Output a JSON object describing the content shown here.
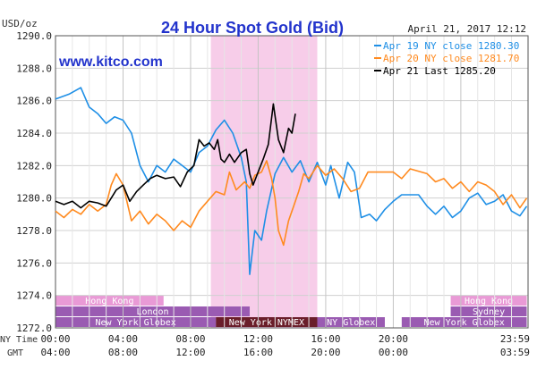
{
  "header": {
    "units": "USD/oz",
    "title": "24 Hour Spot Gold (Bid)",
    "date": "April 21, 2017 12:12",
    "brand": "www.kitco.com"
  },
  "colors": {
    "title": "#2233cc",
    "brand": "#2233cc",
    "ny_session_band": "#f7cde9",
    "apr19": "#1e8fe6",
    "apr20": "#ff8a1f",
    "apr21": "#000000",
    "session_purple": "#9a5bb2",
    "session_pink": "#e99ad6",
    "session_dark": "#6a1e2a"
  },
  "legend": {
    "items": [
      {
        "label": "Apr 19 NY close 1280.30",
        "color": "#1e8fe6"
      },
      {
        "label": "Apr 20 NY close 1281.70",
        "color": "#ff8a1f"
      },
      {
        "label": "Apr 21 Last 1285.20",
        "color": "#000000"
      }
    ]
  },
  "axes": {
    "ny_time_label": "NY Time",
    "gmt_label": "GMT",
    "ny_ticks": [
      "00:00",
      "04:00",
      "08:00",
      "12:00",
      "16:00",
      "20:00",
      "23:59"
    ],
    "gmt_ticks": [
      "04:00",
      "08:00",
      "12:00",
      "16:00",
      "20:00",
      "00:00",
      "03:59"
    ],
    "y_ticks": [
      "1290.0",
      "1288.0",
      "1286.0",
      "1284.0",
      "1282.0",
      "1280.0",
      "1278.0",
      "1276.0",
      "1274.0",
      "1272.0"
    ]
  },
  "sessions": [
    {
      "label": "Hong Kong",
      "row": 0,
      "start_h": 0,
      "end_h": 6.4,
      "color": "#e99ad6"
    },
    {
      "label": "Hong Kong",
      "row": 0,
      "start_h": 23.4,
      "end_h": 27.9,
      "color": "#e99ad6"
    },
    {
      "label": "London",
      "row": 1,
      "start_h": 0,
      "end_h": 11.5,
      "color": "#9a5bb2"
    },
    {
      "label": "Sydney",
      "row": 1,
      "start_h": 23.4,
      "end_h": 27.9,
      "color": "#9a5bb2"
    },
    {
      "label": "New York Globex",
      "row": 2,
      "start_h": 0,
      "end_h": 9.5,
      "color": "#9a5bb2"
    },
    {
      "label": "New York NYMEX",
      "row": 2,
      "start_h": 9.5,
      "end_h": 15.5,
      "color": "#6a1e2a"
    },
    {
      "label": "NY Globex",
      "row": 2,
      "start_h": 15.5,
      "end_h": 19.5,
      "color": "#9a5bb2"
    },
    {
      "label": "New York Globex",
      "row": 2,
      "start_h": 20.5,
      "end_h": 27.9,
      "color": "#9a5bb2"
    }
  ],
  "chart_data": {
    "type": "line",
    "title": "24 Hour Spot Gold (Bid)",
    "ylabel": "USD/oz",
    "xlabel": "NY Time / GMT",
    "ylim": [
      1272,
      1290
    ],
    "xlim": [
      0,
      27.98
    ],
    "x_unit": "hours after 00:00 NY Time",
    "grid": true,
    "legend_position": "top-right",
    "highlight_band": {
      "start": 9.2,
      "end": 15.5
    },
    "series": [
      {
        "name": "Apr 19 NY close 1280.30",
        "color": "#1e8fe6",
        "points": [
          [
            0,
            1286.1
          ],
          [
            0.8,
            1286.4
          ],
          [
            1.5,
            1286.8
          ],
          [
            2.0,
            1285.6
          ],
          [
            2.5,
            1285.2
          ],
          [
            3.0,
            1284.6
          ],
          [
            3.5,
            1285.0
          ],
          [
            4.0,
            1284.8
          ],
          [
            4.5,
            1284.0
          ],
          [
            5.0,
            1282.0
          ],
          [
            5.5,
            1281.0
          ],
          [
            6.0,
            1282.0
          ],
          [
            6.5,
            1281.6
          ],
          [
            7.0,
            1282.4
          ],
          [
            7.5,
            1282.0
          ],
          [
            8.0,
            1281.6
          ],
          [
            8.5,
            1282.8
          ],
          [
            9.0,
            1283.2
          ],
          [
            9.5,
            1284.2
          ],
          [
            10.0,
            1284.8
          ],
          [
            10.5,
            1284.0
          ],
          [
            11.0,
            1282.5
          ],
          [
            11.3,
            1281.0
          ],
          [
            11.5,
            1275.3
          ],
          [
            11.8,
            1278.0
          ],
          [
            12.2,
            1277.4
          ],
          [
            12.5,
            1279.2
          ],
          [
            13.0,
            1281.5
          ],
          [
            13.5,
            1282.5
          ],
          [
            14.0,
            1281.6
          ],
          [
            14.5,
            1282.3
          ],
          [
            15.0,
            1281.0
          ],
          [
            15.5,
            1282.2
          ],
          [
            16.0,
            1280.8
          ],
          [
            16.3,
            1282.0
          ],
          [
            16.8,
            1280.0
          ],
          [
            17.3,
            1282.2
          ],
          [
            17.7,
            1281.6
          ],
          [
            18.1,
            1278.8
          ],
          [
            18.6,
            1279.0
          ],
          [
            19.0,
            1278.6
          ],
          [
            19.5,
            1279.3
          ],
          [
            20.0,
            1279.8
          ],
          [
            20.5,
            1280.2
          ],
          [
            21.5,
            1280.2
          ],
          [
            22.0,
            1279.5
          ],
          [
            22.5,
            1279.0
          ],
          [
            23.0,
            1279.5
          ],
          [
            23.5,
            1278.8
          ],
          [
            24.0,
            1279.2
          ],
          [
            24.5,
            1280.0
          ],
          [
            25.0,
            1280.3
          ],
          [
            25.5,
            1279.6
          ],
          [
            26.0,
            1279.8
          ],
          [
            26.5,
            1280.2
          ],
          [
            27.0,
            1279.2
          ],
          [
            27.5,
            1278.9
          ],
          [
            27.9,
            1279.5
          ]
        ]
      },
      {
        "name": "Apr 20 NY close 1281.70",
        "color": "#ff8a1f",
        "points": [
          [
            0,
            1279.2
          ],
          [
            0.5,
            1278.8
          ],
          [
            1.0,
            1279.3
          ],
          [
            1.5,
            1279.0
          ],
          [
            2.0,
            1279.6
          ],
          [
            2.5,
            1279.2
          ],
          [
            3.0,
            1279.6
          ],
          [
            3.3,
            1280.8
          ],
          [
            3.6,
            1281.5
          ],
          [
            4.0,
            1280.8
          ],
          [
            4.5,
            1278.6
          ],
          [
            5.0,
            1279.2
          ],
          [
            5.5,
            1278.4
          ],
          [
            6.0,
            1279.0
          ],
          [
            6.5,
            1278.6
          ],
          [
            7.0,
            1278.0
          ],
          [
            7.5,
            1278.6
          ],
          [
            8.0,
            1278.2
          ],
          [
            8.5,
            1279.2
          ],
          [
            9.0,
            1279.8
          ],
          [
            9.5,
            1280.4
          ],
          [
            10.0,
            1280.2
          ],
          [
            10.3,
            1281.6
          ],
          [
            10.7,
            1280.5
          ],
          [
            11.2,
            1281.0
          ],
          [
            11.5,
            1280.6
          ],
          [
            11.8,
            1281.4
          ],
          [
            12.2,
            1281.6
          ],
          [
            12.5,
            1282.3
          ],
          [
            12.8,
            1281.2
          ],
          [
            13.0,
            1280.0
          ],
          [
            13.2,
            1278.0
          ],
          [
            13.5,
            1277.1
          ],
          [
            13.8,
            1278.6
          ],
          [
            14.1,
            1279.5
          ],
          [
            14.4,
            1280.4
          ],
          [
            14.7,
            1281.5
          ],
          [
            15.0,
            1281.2
          ],
          [
            15.5,
            1282.0
          ],
          [
            16.0,
            1281.4
          ],
          [
            16.5,
            1281.8
          ],
          [
            17.0,
            1281.2
          ],
          [
            17.5,
            1280.4
          ],
          [
            18.0,
            1280.6
          ],
          [
            18.5,
            1281.6
          ],
          [
            20.0,
            1281.6
          ],
          [
            20.5,
            1281.2
          ],
          [
            21.0,
            1281.8
          ],
          [
            22.0,
            1281.5
          ],
          [
            22.5,
            1281.0
          ],
          [
            23.0,
            1281.2
          ],
          [
            23.5,
            1280.6
          ],
          [
            24.0,
            1281.0
          ],
          [
            24.5,
            1280.4
          ],
          [
            25.0,
            1281.0
          ],
          [
            25.5,
            1280.8
          ],
          [
            26.0,
            1280.4
          ],
          [
            26.5,
            1279.6
          ],
          [
            27.0,
            1280.2
          ],
          [
            27.5,
            1279.4
          ],
          [
            27.9,
            1280.0
          ]
        ]
      },
      {
        "name": "Apr 21 Last 1285.20",
        "color": "#000000",
        "points": [
          [
            0,
            1279.8
          ],
          [
            0.5,
            1279.6
          ],
          [
            1.0,
            1279.8
          ],
          [
            1.5,
            1279.4
          ],
          [
            2.0,
            1279.8
          ],
          [
            2.5,
            1279.7
          ],
          [
            3.0,
            1279.5
          ],
          [
            3.3,
            1280.0
          ],
          [
            3.6,
            1280.5
          ],
          [
            4.0,
            1280.8
          ],
          [
            4.4,
            1279.8
          ],
          [
            4.8,
            1280.4
          ],
          [
            5.2,
            1280.8
          ],
          [
            5.6,
            1281.2
          ],
          [
            6.0,
            1281.4
          ],
          [
            6.5,
            1281.2
          ],
          [
            7.0,
            1281.3
          ],
          [
            7.4,
            1280.7
          ],
          [
            7.8,
            1281.6
          ],
          [
            8.2,
            1282.0
          ],
          [
            8.5,
            1283.6
          ],
          [
            8.8,
            1283.2
          ],
          [
            9.1,
            1283.4
          ],
          [
            9.4,
            1283.0
          ],
          [
            9.6,
            1283.6
          ],
          [
            9.8,
            1282.4
          ],
          [
            10.0,
            1282.2
          ],
          [
            10.3,
            1282.7
          ],
          [
            10.6,
            1282.2
          ],
          [
            11.0,
            1282.8
          ],
          [
            11.3,
            1283.0
          ],
          [
            11.5,
            1281.5
          ],
          [
            11.7,
            1280.8
          ],
          [
            12.0,
            1281.6
          ],
          [
            12.3,
            1282.4
          ],
          [
            12.6,
            1283.3
          ],
          [
            12.9,
            1285.8
          ],
          [
            13.2,
            1283.6
          ],
          [
            13.5,
            1282.8
          ],
          [
            13.8,
            1284.3
          ],
          [
            14.0,
            1284.0
          ],
          [
            14.2,
            1285.2
          ]
        ]
      }
    ]
  }
}
